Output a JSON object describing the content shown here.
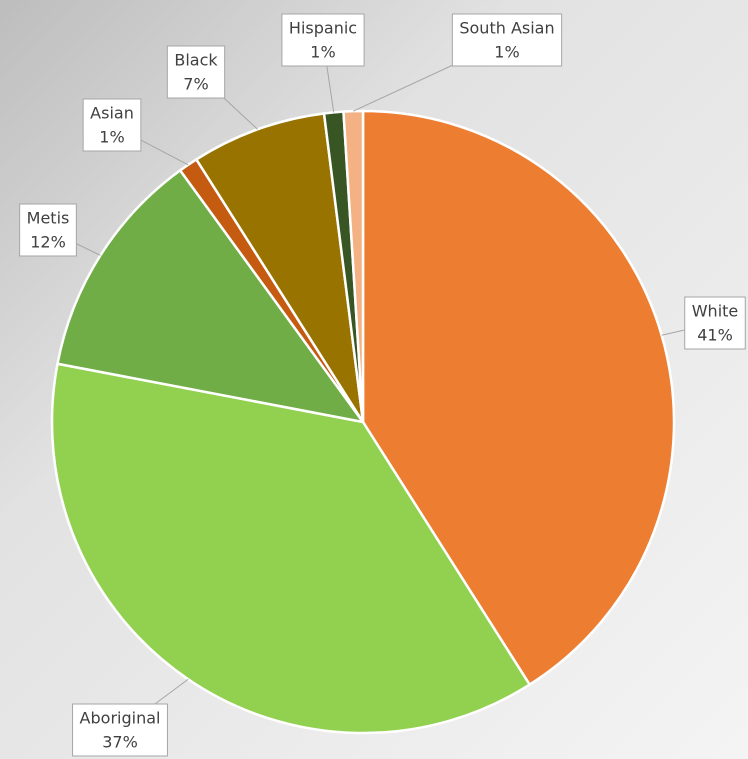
{
  "chart_data": {
    "type": "pie",
    "categories": [
      "White",
      "Aboriginal",
      "Metis",
      "Asian",
      "Black",
      "Hispanic",
      "South Asian"
    ],
    "values": [
      41,
      37,
      12,
      1,
      7,
      1,
      1
    ],
    "value_labels": [
      "41%",
      "37%",
      "12%",
      "1%",
      "7%",
      "1%",
      "1%"
    ],
    "colors": [
      "#ED7D31",
      "#92D050",
      "#70AD47",
      "#C55A11",
      "#997300",
      "#375623",
      "#F4B183"
    ]
  }
}
